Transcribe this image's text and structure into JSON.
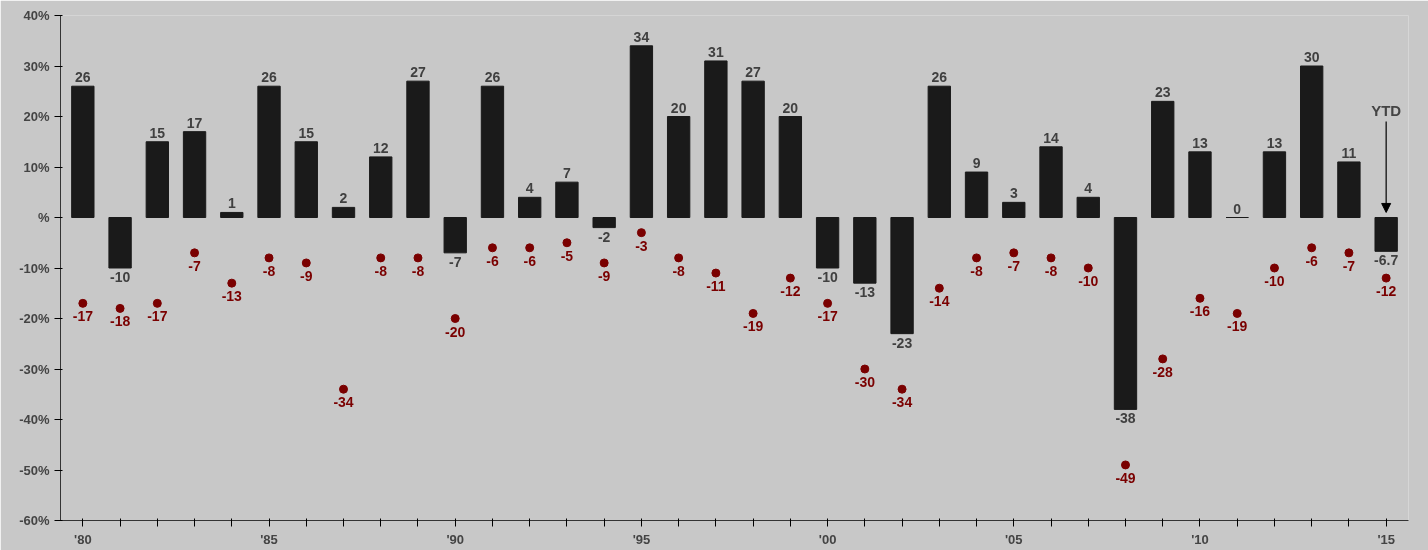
{
  "chart_data": {
    "type": "bar",
    "categories": [
      "'80",
      null,
      null,
      null,
      null,
      "'85",
      null,
      null,
      null,
      null,
      "'90",
      null,
      null,
      null,
      null,
      "'95",
      null,
      null,
      null,
      null,
      "'00",
      null,
      null,
      null,
      null,
      "'05",
      null,
      null,
      null,
      null,
      "'10",
      null,
      null,
      null,
      null,
      "'15"
    ],
    "series": [
      {
        "color": "#1a1a1a",
        "values": [
          26,
          -10,
          15,
          17,
          1,
          26,
          15,
          2,
          12,
          27,
          -7,
          26,
          4,
          7,
          -2,
          34,
          20,
          31,
          27,
          20,
          -10,
          -13,
          -23,
          26,
          9,
          3,
          14,
          4,
          -38,
          23,
          13,
          0,
          13,
          30,
          11,
          -6.7
        ]
      },
      {
        "type": "scatter",
        "color": "#7a0000",
        "marker": "circle",
        "values": [
          -17,
          -18,
          -17,
          -7,
          -13,
          -8,
          -9,
          -34,
          -8,
          -8,
          -20,
          -6,
          -6,
          -5,
          -9,
          -3,
          -8,
          -11,
          -19,
          -12,
          -17,
          -30,
          -34,
          -14,
          -8,
          -7,
          -8,
          -10,
          -49,
          -28,
          -16,
          -19,
          -10,
          -6,
          -7,
          -12
        ]
      }
    ],
    "data_labels": true,
    "ylim": [
      -60,
      40
    ],
    "yticks": [
      {
        "value": -60,
        "label": "-60%"
      },
      {
        "value": -50,
        "label": "-50%"
      },
      {
        "value": -40,
        "label": "-40%"
      },
      {
        "value": -30,
        "label": "-30%"
      },
      {
        "value": -20,
        "label": "-20%"
      },
      {
        "value": -10,
        "label": "-10%"
      },
      {
        "value": 0,
        "label": "%"
      },
      {
        "value": 10,
        "label": "10%"
      },
      {
        "value": 20,
        "label": "20%"
      },
      {
        "value": 30,
        "label": "30%"
      },
      {
        "value": 40,
        "label": "40%"
      }
    ],
    "grid": false,
    "annotations": [
      "YTD"
    ]
  }
}
